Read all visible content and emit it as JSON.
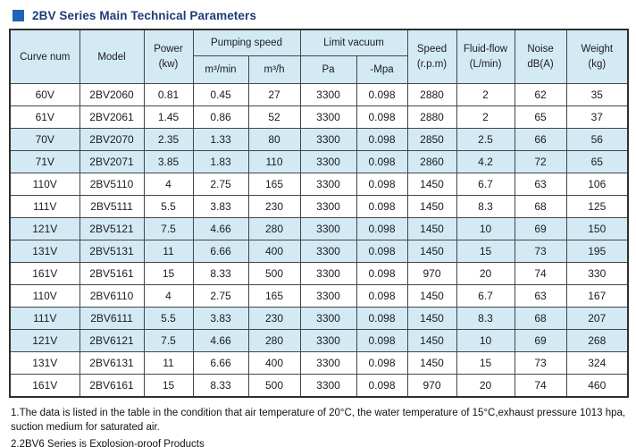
{
  "title": {
    "text": "2BV Series Main Technical Parameters"
  },
  "colors": {
    "title_bullet": "#1b64b6",
    "title_text": "#1d3c78",
    "header_bg": "#d3eaf5",
    "shaded_row_bg": "#d3eaf5",
    "grid_line": "#454545"
  },
  "table": {
    "headers": {
      "curve": "Curve num",
      "model": "Model",
      "power_l1": "Power",
      "power_l2": "(kw)",
      "pumping_group": "Pumping speed",
      "m3min": "m³/min",
      "m3h": "m³/h",
      "limit_group": "Limit vacuum",
      "pa": "Pa",
      "mpa": "-Mpa",
      "speed_l1": "Speed",
      "speed_l2": "(r.p.m)",
      "fluid_l1": "Fluid-flow",
      "fluid_l2": "(L/min)",
      "noise_l1": "Noise",
      "noise_l2": "dB(A)",
      "weight_l1": "Weight",
      "weight_l2": "(kg)"
    },
    "rows": [
      {
        "curve": "60V",
        "model": "2BV2060",
        "power": "0.81",
        "m3min": "0.45",
        "m3h": "27",
        "pa": "3300",
        "mpa": "0.098",
        "speed": "2880",
        "fluid": "2",
        "noise": "62",
        "weight": "35",
        "shade": false
      },
      {
        "curve": "61V",
        "model": "2BV2061",
        "power": "1.45",
        "m3min": "0.86",
        "m3h": "52",
        "pa": "3300",
        "mpa": "0.098",
        "speed": "2880",
        "fluid": "2",
        "noise": "65",
        "weight": "37",
        "shade": false
      },
      {
        "curve": "70V",
        "model": "2BV2070",
        "power": "2.35",
        "m3min": "1.33",
        "m3h": "80",
        "pa": "3300",
        "mpa": "0.098",
        "speed": "2850",
        "fluid": "2.5",
        "noise": "66",
        "weight": "56",
        "shade": true
      },
      {
        "curve": "71V",
        "model": "2BV2071",
        "power": "3.85",
        "m3min": "1.83",
        "m3h": "110",
        "pa": "3300",
        "mpa": "0.098",
        "speed": "2860",
        "fluid": "4.2",
        "noise": "72",
        "weight": "65",
        "shade": true
      },
      {
        "curve": "110V",
        "model": "2BV5110",
        "power": "4",
        "m3min": "2.75",
        "m3h": "165",
        "pa": "3300",
        "mpa": "0.098",
        "speed": "1450",
        "fluid": "6.7",
        "noise": "63",
        "weight": "106",
        "shade": false
      },
      {
        "curve": "111V",
        "model": "2BV5111",
        "power": "5.5",
        "m3min": "3.83",
        "m3h": "230",
        "pa": "3300",
        "mpa": "0.098",
        "speed": "1450",
        "fluid": "8.3",
        "noise": "68",
        "weight": "125",
        "shade": false
      },
      {
        "curve": "121V",
        "model": "2BV5121",
        "power": "7.5",
        "m3min": "4.66",
        "m3h": "280",
        "pa": "3300",
        "mpa": "0.098",
        "speed": "1450",
        "fluid": "10",
        "noise": "69",
        "weight": "150",
        "shade": true
      },
      {
        "curve": "131V",
        "model": "2BV5131",
        "power": "11",
        "m3min": "6.66",
        "m3h": "400",
        "pa": "3300",
        "mpa": "0.098",
        "speed": "1450",
        "fluid": "15",
        "noise": "73",
        "weight": "195",
        "shade": true
      },
      {
        "curve": "161V",
        "model": "2BV5161",
        "power": "15",
        "m3min": "8.33",
        "m3h": "500",
        "pa": "3300",
        "mpa": "0.098",
        "speed": "970",
        "fluid": "20",
        "noise": "74",
        "weight": "330",
        "shade": false
      },
      {
        "curve": "110V",
        "model": "2BV6110",
        "power": "4",
        "m3min": "2.75",
        "m3h": "165",
        "pa": "3300",
        "mpa": "0.098",
        "speed": "1450",
        "fluid": "6.7",
        "noise": "63",
        "weight": "167",
        "shade": false
      },
      {
        "curve": "111V",
        "model": "2BV6111",
        "power": "5.5",
        "m3min": "3.83",
        "m3h": "230",
        "pa": "3300",
        "mpa": "0.098",
        "speed": "1450",
        "fluid": "8.3",
        "noise": "68",
        "weight": "207",
        "shade": true
      },
      {
        "curve": "121V",
        "model": "2BV6121",
        "power": "7.5",
        "m3min": "4.66",
        "m3h": "280",
        "pa": "3300",
        "mpa": "0.098",
        "speed": "1450",
        "fluid": "10",
        "noise": "69",
        "weight": "268",
        "shade": true
      },
      {
        "curve": "131V",
        "model": "2BV6131",
        "power": "11",
        "m3min": "6.66",
        "m3h": "400",
        "pa": "3300",
        "mpa": "0.098",
        "speed": "1450",
        "fluid": "15",
        "noise": "73",
        "weight": "324",
        "shade": false
      },
      {
        "curve": "161V",
        "model": "2BV6161",
        "power": "15",
        "m3min": "8.33",
        "m3h": "500",
        "pa": "3300",
        "mpa": "0.098",
        "speed": "970",
        "fluid": "20",
        "noise": "74",
        "weight": "460",
        "shade": false
      }
    ]
  },
  "notes": [
    "1.The data is listed in the table in the condition that air temperature of 20°C, the water temperature of 15°C,exhaust pressure 1013 hpa, suction medium for saturated air.",
    "2.2BV6 Series is Explosion-proof Products"
  ]
}
